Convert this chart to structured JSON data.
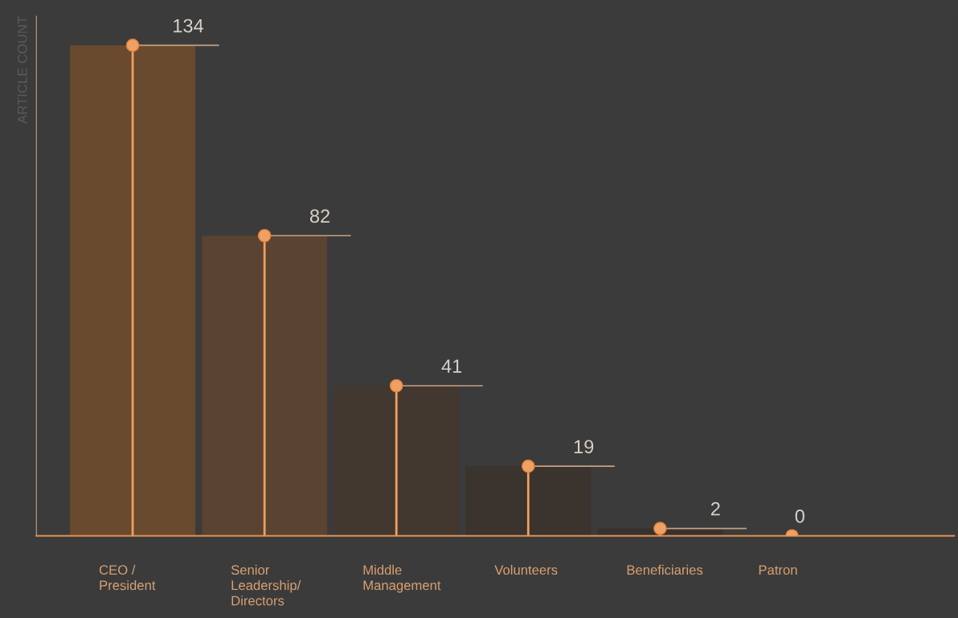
{
  "chart_data": {
    "type": "bar",
    "ylabel": "ARTICLE COUNT",
    "categories": [
      "CEO /\nPresident",
      "Senior\nLeadership/\nDirectors",
      "Middle\nManagement",
      "Volunteers",
      "Beneficiaries",
      "Patron"
    ],
    "series": [
      {
        "colors": [
          "#6a4a2e",
          "#5a4330",
          "#433830",
          "#3a332e",
          "#373230",
          "#3a3a3a"
        ],
        "values": [
          134,
          82,
          41,
          19,
          2,
          0
        ],
        "value_labels": [
          "134",
          "82",
          "41",
          "19",
          "2",
          "0"
        ]
      },
      {
        "type": "lollipop",
        "color": "#f0a060",
        "values": [
          134,
          82,
          41,
          19,
          2,
          0
        ]
      }
    ],
    "ylim": [
      0,
      142
    ],
    "tick_labels": "x",
    "grid": false,
    "legend": false,
    "marker": "circle"
  }
}
